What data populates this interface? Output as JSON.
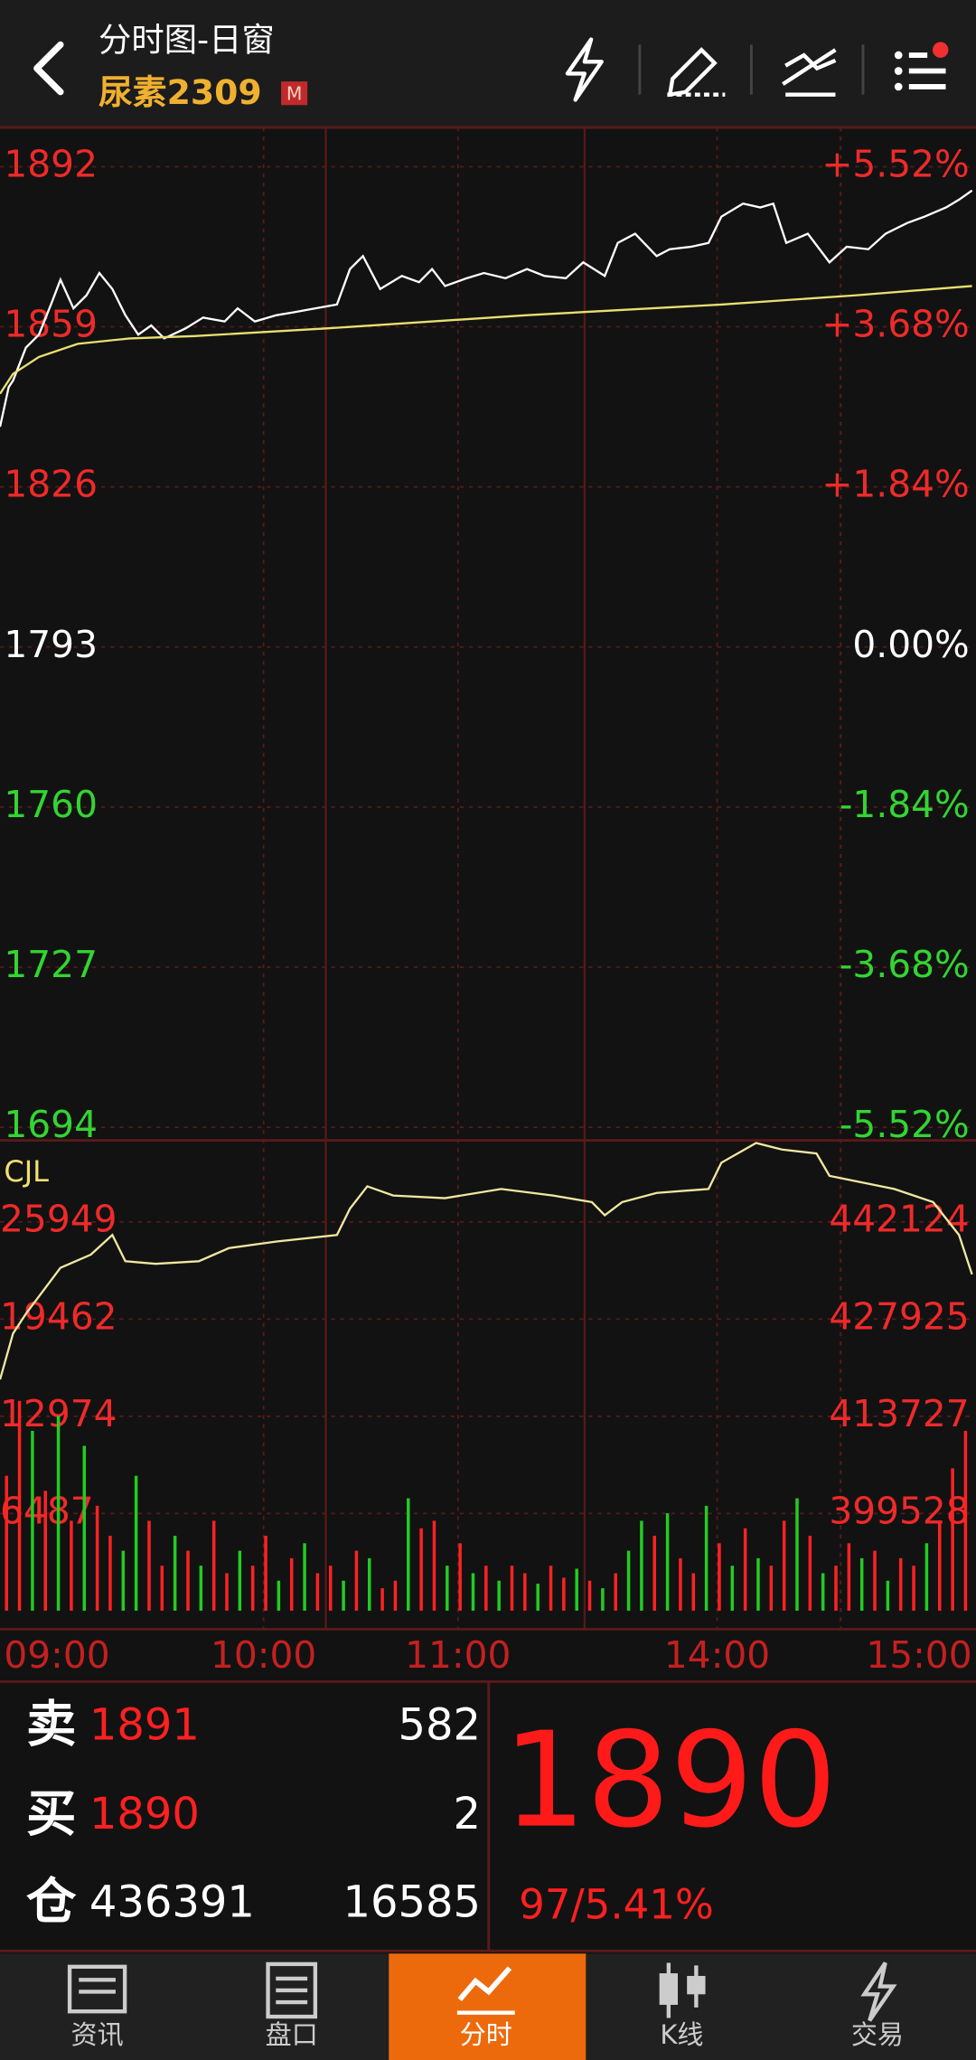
{
  "header": {
    "title": "分时图-日窗",
    "symbol": "尿素2309",
    "badge": "M"
  },
  "chart_data": [
    {
      "type": "line",
      "xlim": [
        0,
        225
      ],
      "ylim": [
        1691.3,
        1900.1
      ],
      "yticks": [
        1892,
        1859,
        1826,
        1793,
        1760,
        1727,
        1694
      ],
      "y2lim": [
        -5.672,
        5.973
      ],
      "y2ticks": [
        {
          "value": 5.52,
          "label": "+5.52%"
        },
        {
          "value": 3.68,
          "label": "+3.68%"
        },
        {
          "value": 1.84,
          "label": "+1.84%"
        },
        {
          "value": 0,
          "label": "0.00%"
        },
        {
          "value": -1.84,
          "label": "-1.84%"
        },
        {
          "value": -3.68,
          "label": "-3.68%"
        },
        {
          "value": -5.52,
          "label": "-5.52%"
        }
      ],
      "grid": true,
      "series": [
        {
          "color": "#ffffff",
          "x": [
            0,
            2,
            3,
            6,
            9,
            12,
            14,
            17,
            20,
            23,
            26,
            29,
            32,
            35,
            38,
            43,
            47,
            52,
            55,
            59,
            64,
            68,
            73,
            78,
            81,
            84,
            88,
            93,
            97,
            100,
            103,
            108,
            112,
            117,
            122,
            126,
            131,
            135,
            140,
            143,
            147,
            152,
            155,
            160,
            164,
            167,
            172,
            176,
            179,
            182,
            187,
            192,
            196,
            201,
            205,
            210,
            214,
            219,
            222,
            225
          ],
          "values": [
            1838.4,
            1846.6,
            1847.9,
            1854.7,
            1857.4,
            1864.1,
            1868.7,
            1862.8,
            1865.5,
            1870.1,
            1866.8,
            1861.4,
            1857.4,
            1859.3,
            1856.6,
            1858.7,
            1860.9,
            1860.1,
            1862.8,
            1860.1,
            1861.4,
            1862.0,
            1862.8,
            1863.6,
            1870.9,
            1873.6,
            1866.8,
            1869.5,
            1868.2,
            1870.9,
            1867.4,
            1869.0,
            1870.1,
            1869.0,
            1870.9,
            1869.5,
            1869.0,
            1872.3,
            1869.5,
            1876.3,
            1878.2,
            1873.6,
            1875.0,
            1875.5,
            1876.3,
            1881.7,
            1884.4,
            1883.6,
            1884.4,
            1876.3,
            1878.2,
            1872.3,
            1875.5,
            1875.0,
            1878.2,
            1880.4,
            1881.7,
            1883.6,
            1885.2,
            1887.1
          ]
        },
        {
          "color": "#e8e070",
          "x": [
            0,
            3,
            9,
            18,
            30,
            45,
            76,
            122,
            167,
            198,
            225
          ],
          "values": [
            1845.2,
            1849.3,
            1852.8,
            1855.5,
            1856.6,
            1857.1,
            1858.7,
            1861.4,
            1863.6,
            1865.5,
            1867.4
          ]
        }
      ],
      "xticks": [
        {
          "value": 0,
          "label": "09:00"
        },
        {
          "value": 61,
          "label": "10:00"
        },
        {
          "value": 106,
          "label": "11:00"
        },
        {
          "value": 166,
          "label": "14:00"
        },
        {
          "value": 225,
          "label": "15:00"
        }
      ]
    },
    {
      "type": "volume",
      "title": "CJL",
      "xlim": [
        0,
        225
      ],
      "ylim": [
        0,
        31209
      ],
      "yticks": [
        25949,
        19462,
        12974,
        6487
      ],
      "y2lim": [
        385330,
        453636
      ],
      "y2ticks": [
        442124,
        427925,
        413727,
        399528
      ],
      "grid": true,
      "series": [
        {
          "type": "bar",
          "values": [
            9000,
            14000,
            12000,
            8000,
            13000,
            6000,
            11000,
            7000,
            5000,
            4000,
            9000,
            6000,
            3000,
            5000,
            4000,
            3000,
            6000,
            2500,
            4000,
            3000,
            5000,
            2000,
            3500,
            4500,
            2500,
            3000,
            2000,
            4000,
            3500,
            1500,
            2000,
            7500,
            5500,
            6000,
            3000,
            4500,
            2500,
            3000,
            2000,
            3000,
            2500,
            1800,
            3000,
            2200,
            2800,
            2000,
            1500,
            2500,
            4000,
            6000,
            5000,
            6500,
            3500,
            2500,
            7000,
            4500,
            3000,
            5500,
            3500,
            3000,
            6000,
            7500,
            5000,
            2500,
            3000,
            4500,
            3500,
            4000,
            2000,
            3500,
            3000,
            4500,
            6000,
            9500,
            12000
          ],
          "colors": [
            "#f22",
            "#f22",
            "#2c2",
            "#f22",
            "#2c2",
            "#f22",
            "#2c2",
            "#f22",
            "#f22",
            "#2c2",
            "#2c2",
            "#f22",
            "#f22",
            "#2c2",
            "#f22",
            "#2c2",
            "#f22",
            "#f22",
            "#2c2",
            "#f22",
            "#f22",
            "#2c2",
            "#f22",
            "#2c2",
            "#f22",
            "#f22",
            "#2c2",
            "#f22",
            "#2c2",
            "#f22",
            "#f22",
            "#2c2",
            "#f22",
            "#f22",
            "#2c2",
            "#f22",
            "#2c2",
            "#f22",
            "#2c2",
            "#f22",
            "#f22",
            "#2c2",
            "#f22",
            "#f22",
            "#2c2",
            "#f22",
            "#2c2",
            "#f22",
            "#2c2",
            "#2c2",
            "#f22",
            "#2c2",
            "#f22",
            "#f22",
            "#2c2",
            "#f22",
            "#2c2",
            "#f22",
            "#2c2",
            "#f22",
            "#f22",
            "#2c2",
            "#f22",
            "#2c2",
            "#f22",
            "#f22",
            "#2c2",
            "#f22",
            "#2c2",
            "#f22",
            "#f22",
            "#2c2",
            "#f22",
            "#f22",
            "#f22"
          ]
        },
        {
          "type": "line",
          "axis": "y2",
          "color": "#f0e8a0",
          "x": [
            0,
            3,
            6,
            14,
            21,
            26,
            29,
            36,
            46,
            53,
            64,
            78,
            81,
            85,
            91,
            103,
            116,
            128,
            137,
            140,
            144,
            152,
            164,
            167,
            175,
            181,
            189,
            192,
            207,
            216,
            222,
            225
          ],
          "values": [
            419100,
            425815,
            428693,
            435409,
            437327,
            440205,
            436368,
            435984,
            436368,
            438287,
            439246,
            440205,
            444043,
            447304,
            445961,
            445578,
            446921,
            445961,
            445002,
            443083,
            445002,
            446345,
            446921,
            450758,
            453636,
            452677,
            452101,
            448839,
            446921,
            445002,
            440205,
            434449
          ]
        }
      ]
    }
  ],
  "quote": {
    "sell": {
      "label": "卖",
      "price": 1891,
      "volume": 582
    },
    "buy": {
      "label": "买",
      "price": 1890,
      "volume": 2
    },
    "position": {
      "label": "仓",
      "value": 436391,
      "change": 16585
    },
    "last": 1890,
    "change": "97/5.41%"
  },
  "tabs": [
    "资讯",
    "盘口",
    "分时",
    "K线",
    "交易"
  ]
}
